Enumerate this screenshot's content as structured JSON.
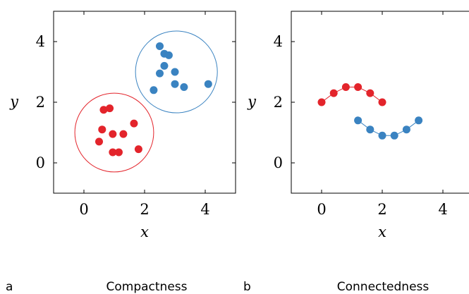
{
  "chart_data": [
    {
      "type": "scatter",
      "panel_letter": "a",
      "caption": "Compactness",
      "xlabel": "x",
      "ylabel": "y",
      "xlim": [
        -1,
        5
      ],
      "ylim": [
        -1,
        5
      ],
      "xticks": [
        0,
        2,
        4
      ],
      "yticks": [
        0,
        2,
        4
      ],
      "grid": false,
      "series": [
        {
          "color": "#e3242b",
          "points": [
            [
              0.5,
              0.7
            ],
            [
              0.6,
              1.1
            ],
            [
              0.65,
              1.75
            ],
            [
              0.85,
              1.8
            ],
            [
              0.95,
              0.95
            ],
            [
              0.95,
              0.35
            ],
            [
              1.15,
              0.35
            ],
            [
              1.3,
              0.95
            ],
            [
              1.65,
              1.3
            ],
            [
              1.8,
              0.45
            ]
          ],
          "circle": {
            "cx": 1.0,
            "cy": 1.0,
            "r": 1.3
          }
        },
        {
          "color": "#3a83c1",
          "points": [
            [
              2.3,
              2.4
            ],
            [
              2.5,
              2.95
            ],
            [
              2.5,
              3.85
            ],
            [
              2.65,
              3.2
            ],
            [
              2.65,
              3.6
            ],
            [
              2.8,
              3.55
            ],
            [
              3.0,
              3.0
            ],
            [
              3.0,
              2.6
            ],
            [
              3.3,
              2.5
            ],
            [
              4.1,
              2.6
            ]
          ],
          "circle": {
            "cx": 3.05,
            "cy": 3.0,
            "r": 1.35
          }
        }
      ]
    },
    {
      "type": "line",
      "panel_letter": "b",
      "caption": "Connectedness",
      "xlabel": "x",
      "ylabel": "y",
      "xlim": [
        -1,
        5
      ],
      "ylim": [
        -1,
        5
      ],
      "xticks": [
        0,
        2,
        4
      ],
      "yticks": [
        0,
        2,
        4
      ],
      "grid": false,
      "series": [
        {
          "color": "#e3242b",
          "points": [
            [
              0,
              2.0
            ],
            [
              0.4,
              2.3
            ],
            [
              0.8,
              2.5
            ],
            [
              1.2,
              2.5
            ],
            [
              1.6,
              2.3
            ],
            [
              2.0,
              2.0
            ]
          ]
        },
        {
          "color": "#3a83c1",
          "points": [
            [
              1.2,
              1.4
            ],
            [
              1.6,
              1.1
            ],
            [
              2.0,
              0.9
            ],
            [
              2.4,
              0.9
            ],
            [
              2.8,
              1.1
            ],
            [
              3.2,
              1.4
            ]
          ]
        }
      ]
    }
  ]
}
